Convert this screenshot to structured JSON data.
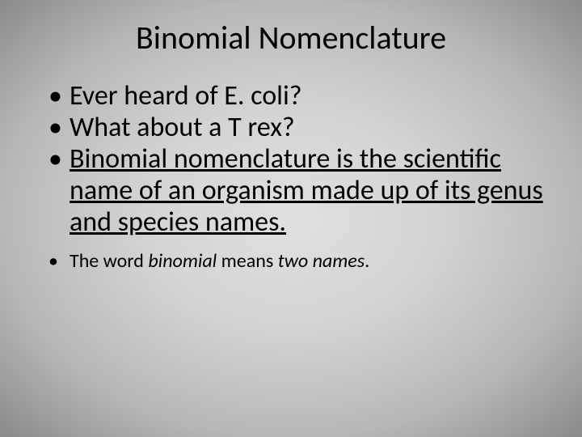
{
  "slide": {
    "title": "Binomial Nomenclature",
    "bullets": [
      {
        "text": "Ever heard of E. coli?",
        "size": "large",
        "underline": false
      },
      {
        "text": "What about a T rex?",
        "size": "large",
        "underline": false
      },
      {
        "text": "Binomial nomenclature is the scientific name of an organism made up of its genus and species names.",
        "size": "large",
        "underline": true
      }
    ],
    "footnote_prefix": "The word ",
    "footnote_italic1": "binomial",
    "footnote_mid": " means ",
    "footnote_italic2": "two names",
    "footnote_suffix": "."
  },
  "style": {
    "background_gradient_center": "#e0e0e0",
    "background_gradient_edge": "#8a8a8a",
    "text_color": "#000000",
    "title_fontsize": 40,
    "bullet_large_fontsize": 34,
    "bullet_small_fontsize": 24,
    "font_family": "Calibri"
  }
}
